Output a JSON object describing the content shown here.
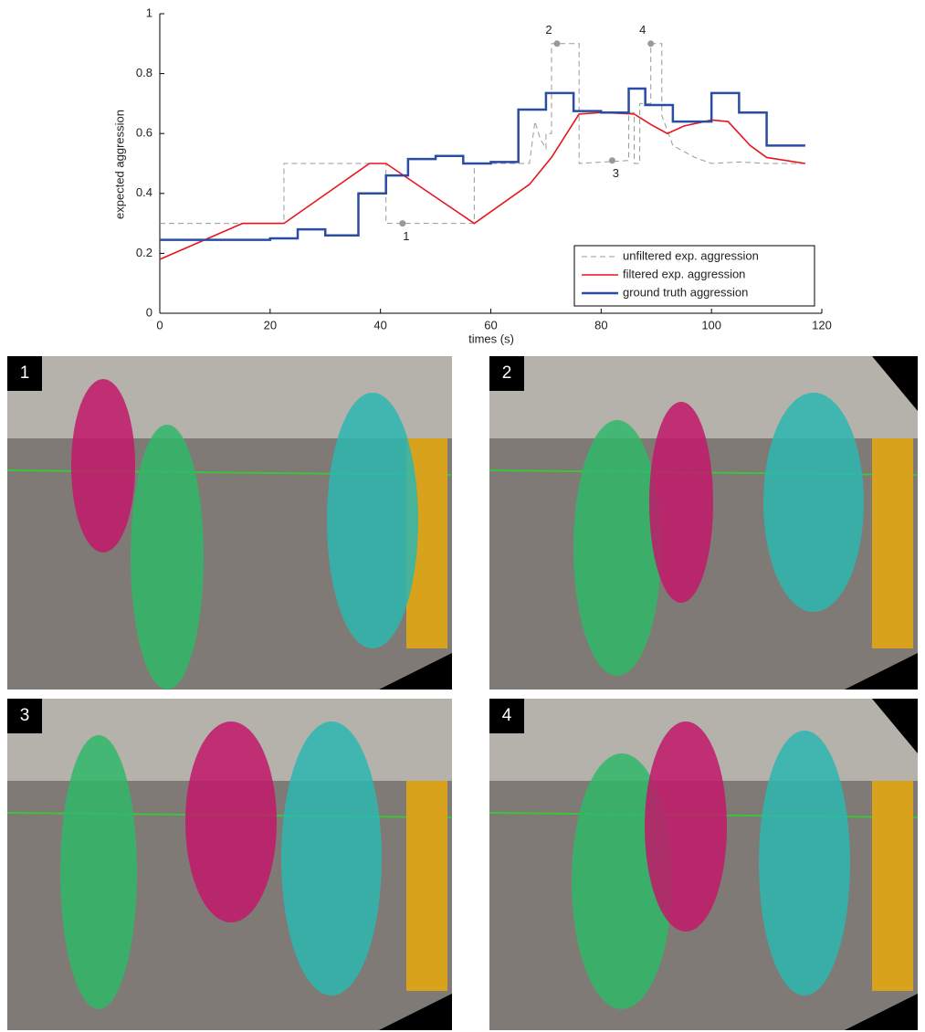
{
  "chart_data": {
    "type": "line",
    "xlabel": "times (s)",
    "ylabel": "expected aggression",
    "xlim": [
      0,
      120
    ],
    "ylim": [
      0,
      1
    ],
    "xticks": [
      0,
      20,
      40,
      60,
      80,
      100,
      120
    ],
    "yticks": [
      0,
      0.2,
      0.4,
      0.6,
      0.8,
      1
    ],
    "legend": "lower right",
    "series": [
      {
        "name": "unfiltered exp. aggression",
        "color": "#999999",
        "style": "dashed",
        "x": [
          0,
          22.5,
          22.5,
          41,
          41,
          57,
          57,
          67,
          68,
          69,
          70,
          70,
          71,
          71,
          76,
          76,
          85,
          85,
          86,
          86,
          87,
          87,
          89,
          89,
          91,
          91,
          93,
          97,
          100,
          105,
          110,
          117
        ],
        "values": [
          0.3,
          0.3,
          0.5,
          0.5,
          0.3,
          0.3,
          0.5,
          0.5,
          0.64,
          0.58,
          0.55,
          0.6,
          0.6,
          0.9,
          0.9,
          0.5,
          0.51,
          0.67,
          0.67,
          0.5,
          0.5,
          0.7,
          0.7,
          0.9,
          0.9,
          0.66,
          0.56,
          0.52,
          0.5,
          0.505,
          0.5,
          0.5
        ]
      },
      {
        "name": "filtered exp. aggression",
        "color": "#e8141c",
        "style": "solid",
        "x": [
          0,
          15,
          22.5,
          38,
          41,
          57,
          67,
          71,
          76,
          80,
          86,
          89,
          92,
          95,
          100,
          103,
          107,
          110,
          117
        ],
        "values": [
          0.18,
          0.3,
          0.3,
          0.5,
          0.5,
          0.3,
          0.43,
          0.52,
          0.665,
          0.67,
          0.665,
          0.63,
          0.6,
          0.625,
          0.645,
          0.64,
          0.56,
          0.52,
          0.5
        ]
      },
      {
        "name": "ground truth aggression",
        "color": "#2b4ca3",
        "style": "steps",
        "x": [
          0,
          13,
          20,
          25,
          30,
          36,
          41,
          45,
          50,
          55,
          60,
          65,
          70,
          75,
          80,
          85,
          88,
          93,
          100,
          105,
          110,
          117
        ],
        "values": [
          0.245,
          0.245,
          0.25,
          0.28,
          0.26,
          0.4,
          0.46,
          0.515,
          0.525,
          0.5,
          0.505,
          0.68,
          0.735,
          0.675,
          0.67,
          0.75,
          0.695,
          0.64,
          0.735,
          0.67,
          0.56,
          0.56
        ]
      }
    ],
    "annotations": [
      {
        "x": 44,
        "y": 0.3,
        "label": "1"
      },
      {
        "x": 72,
        "y": 0.9,
        "label": "2"
      },
      {
        "x": 82,
        "y": 0.51,
        "label": "3"
      },
      {
        "x": 89,
        "y": 0.9,
        "label": "4"
      }
    ]
  },
  "panels": [
    {
      "label": "1"
    },
    {
      "label": "2"
    },
    {
      "label": "3"
    },
    {
      "label": "4"
    }
  ]
}
